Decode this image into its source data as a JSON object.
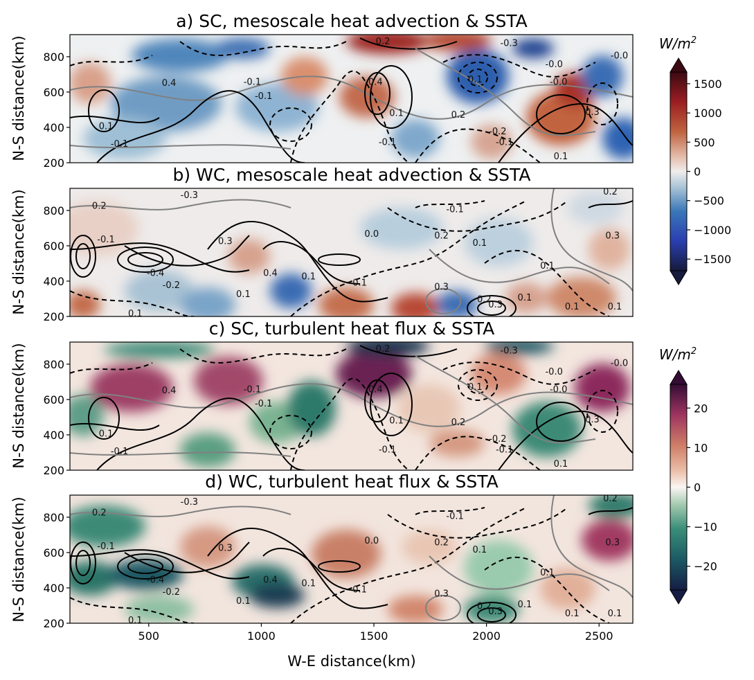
{
  "figure": {
    "xlabel": "W-E distance(km)",
    "ylabel": "N-S distance(km)",
    "colorbar_top_unit": "W/m",
    "colorbar_top_unit_sup": "2",
    "colorbar_bottom_unit": "W/m",
    "colorbar_bottom_unit_sup": "2"
  },
  "chart_data": [
    {
      "type": "heatmap",
      "title": "a) SC, mesoscale heat advection & SSTA",
      "xlim": [
        150,
        2650
      ],
      "ylim": [
        200,
        925
      ],
      "xticks": [],
      "yticks": [
        200,
        400,
        600,
        800
      ],
      "colormap": "balance",
      "clim": [
        -1700,
        1700
      ],
      "contour_labels": [
        {
          "x": 1600,
          "y": 465,
          "text": "0.1"
        },
        {
          "x": 960,
          "y": 640,
          "text": "-0.1"
        },
        {
          "x": 2080,
          "y": 300,
          "text": "-0.1"
        },
        {
          "x": 1010,
          "y": 560,
          "text": "-0.1"
        },
        {
          "x": 1540,
          "y": 870,
          "text": "0.2"
        },
        {
          "x": 2300,
          "y": 740,
          "text": "-0.0"
        },
        {
          "x": 1950,
          "y": 655,
          "text": "0.1"
        },
        {
          "x": 1875,
          "y": 455,
          "text": "0.2"
        },
        {
          "x": 2050,
          "y": 360,
          "text": "-0.2"
        },
        {
          "x": 2470,
          "y": 470,
          "text": "0.3"
        },
        {
          "x": 2330,
          "y": 220,
          "text": "0.1"
        },
        {
          "x": 2100,
          "y": 860,
          "text": "-0.3"
        },
        {
          "x": 310,
          "y": 390,
          "text": "0.1"
        },
        {
          "x": 370,
          "y": 290,
          "text": "-0.1"
        },
        {
          "x": 1500,
          "y": 640,
          "text": "-0.4"
        },
        {
          "x": 590,
          "y": 635,
          "text": "0.4"
        },
        {
          "x": 2590,
          "y": 790,
          "text": "-0.0"
        },
        {
          "x": 1560,
          "y": 300,
          "text": "-0.1"
        },
        {
          "x": 2320,
          "y": 640,
          "text": "-0.0"
        }
      ]
    },
    {
      "type": "heatmap",
      "title": "b) WC, mesoscale heat advection & SSTA",
      "xlim": [
        150,
        2650
      ],
      "ylim": [
        200,
        925
      ],
      "xticks": [],
      "yticks": [
        200,
        400,
        600,
        800
      ],
      "colormap": "balance",
      "clim": [
        -1700,
        1700
      ],
      "contour_labels": [
        {
          "x": 280,
          "y": 810,
          "text": "0.2"
        },
        {
          "x": 680,
          "y": 870,
          "text": "-0.3"
        },
        {
          "x": 310,
          "y": 620,
          "text": "-0.1"
        },
        {
          "x": 530,
          "y": 430,
          "text": "-0.4"
        },
        {
          "x": 600,
          "y": 360,
          "text": "-0.2"
        },
        {
          "x": 840,
          "y": 610,
          "text": "0.3"
        },
        {
          "x": 1040,
          "y": 430,
          "text": "0.4"
        },
        {
          "x": 1210,
          "y": 410,
          "text": "0.1"
        },
        {
          "x": 1430,
          "y": 375,
          "text": "-0.1"
        },
        {
          "x": 1490,
          "y": 650,
          "text": "0.0"
        },
        {
          "x": 1800,
          "y": 640,
          "text": "0.2"
        },
        {
          "x": 1800,
          "y": 350,
          "text": "0.3"
        },
        {
          "x": 1970,
          "y": 600,
          "text": "0.1"
        },
        {
          "x": 1990,
          "y": 280,
          "text": "0.2"
        },
        {
          "x": 2040,
          "y": 250,
          "text": "0.3"
        },
        {
          "x": 2170,
          "y": 290,
          "text": "0.1"
        },
        {
          "x": 2270,
          "y": 470,
          "text": "0.1"
        },
        {
          "x": 2380,
          "y": 240,
          "text": "0.1"
        },
        {
          "x": 2550,
          "y": 890,
          "text": "0.2"
        },
        {
          "x": 2560,
          "y": 640,
          "text": "0.3"
        },
        {
          "x": 2570,
          "y": 240,
          "text": "0.1"
        },
        {
          "x": 1860,
          "y": 790,
          "text": "-0.1"
        },
        {
          "x": 440,
          "y": 200,
          "text": "0.1"
        },
        {
          "x": 920,
          "y": 310,
          "text": "0.1"
        }
      ]
    },
    {
      "type": "heatmap",
      "title": "c) SC, turbulent heat flux & SSTA",
      "xlim": [
        150,
        2650
      ],
      "ylim": [
        200,
        925
      ],
      "xticks": [],
      "yticks": [
        200,
        400,
        600,
        800
      ],
      "colormap": "curl",
      "clim": [
        -26,
        26
      ],
      "contour_labels": [
        {
          "x": 1600,
          "y": 465,
          "text": "0.1"
        },
        {
          "x": 960,
          "y": 640,
          "text": "-0.1"
        },
        {
          "x": 2080,
          "y": 300,
          "text": "-0.1"
        },
        {
          "x": 1010,
          "y": 560,
          "text": "-0.1"
        },
        {
          "x": 1540,
          "y": 870,
          "text": "0.2"
        },
        {
          "x": 2300,
          "y": 740,
          "text": "-0.0"
        },
        {
          "x": 1950,
          "y": 655,
          "text": "0.1"
        },
        {
          "x": 1875,
          "y": 455,
          "text": "0.2"
        },
        {
          "x": 2050,
          "y": 360,
          "text": "-0.2"
        },
        {
          "x": 2470,
          "y": 470,
          "text": "0.3"
        },
        {
          "x": 2330,
          "y": 220,
          "text": "0.1"
        },
        {
          "x": 2100,
          "y": 860,
          "text": "-0.3"
        },
        {
          "x": 310,
          "y": 390,
          "text": "0.1"
        },
        {
          "x": 370,
          "y": 290,
          "text": "-0.1"
        },
        {
          "x": 1500,
          "y": 640,
          "text": "-0.4"
        },
        {
          "x": 590,
          "y": 635,
          "text": "0.4"
        },
        {
          "x": 2590,
          "y": 790,
          "text": "-0.0"
        },
        {
          "x": 1560,
          "y": 300,
          "text": "-0.1"
        },
        {
          "x": 2320,
          "y": 640,
          "text": "-0.0"
        }
      ]
    },
    {
      "type": "heatmap",
      "title": "d) WC, turbulent heat flux & SSTA",
      "xlim": [
        150,
        2650
      ],
      "ylim": [
        200,
        925
      ],
      "xticks": [
        500,
        1000,
        1500,
        2000,
        2500
      ],
      "yticks": [
        200,
        400,
        600,
        800
      ],
      "colormap": "curl",
      "clim": [
        -26,
        26
      ],
      "contour_labels": [
        {
          "x": 280,
          "y": 810,
          "text": "0.2"
        },
        {
          "x": 680,
          "y": 870,
          "text": "-0.3"
        },
        {
          "x": 310,
          "y": 620,
          "text": "-0.1"
        },
        {
          "x": 530,
          "y": 430,
          "text": "-0.4"
        },
        {
          "x": 600,
          "y": 360,
          "text": "-0.2"
        },
        {
          "x": 840,
          "y": 610,
          "text": "0.3"
        },
        {
          "x": 1040,
          "y": 430,
          "text": "0.4"
        },
        {
          "x": 1210,
          "y": 410,
          "text": "0.1"
        },
        {
          "x": 1430,
          "y": 375,
          "text": "-0.1"
        },
        {
          "x": 1490,
          "y": 650,
          "text": "0.0"
        },
        {
          "x": 1800,
          "y": 640,
          "text": "0.2"
        },
        {
          "x": 1800,
          "y": 350,
          "text": "0.3"
        },
        {
          "x": 1970,
          "y": 600,
          "text": "0.1"
        },
        {
          "x": 1990,
          "y": 280,
          "text": "0.2"
        },
        {
          "x": 2040,
          "y": 250,
          "text": "0.3"
        },
        {
          "x": 2170,
          "y": 290,
          "text": "0.1"
        },
        {
          "x": 2270,
          "y": 470,
          "text": "0.1"
        },
        {
          "x": 2380,
          "y": 240,
          "text": "0.1"
        },
        {
          "x": 2550,
          "y": 890,
          "text": "0.2"
        },
        {
          "x": 2560,
          "y": 640,
          "text": "0.3"
        },
        {
          "x": 2570,
          "y": 240,
          "text": "0.1"
        },
        {
          "x": 1860,
          "y": 790,
          "text": "-0.1"
        },
        {
          "x": 440,
          "y": 200,
          "text": "0.1"
        },
        {
          "x": 920,
          "y": 310,
          "text": "0.1"
        }
      ]
    },
    {
      "type": "colorbar",
      "colormap": "balance",
      "clim": [
        -1700,
        1700
      ],
      "ticks": [
        1500,
        1000,
        500,
        0,
        -500,
        -1000,
        -1500
      ],
      "tick_labels": [
        "1500",
        "1000",
        "500",
        "0",
        "−500",
        "−1000",
        "−1500"
      ],
      "extend": "both"
    },
    {
      "type": "colorbar",
      "colormap": "curl",
      "clim": [
        -26,
        26
      ],
      "ticks": [
        20,
        10,
        0,
        -10,
        -20
      ],
      "tick_labels": [
        "20",
        "10",
        "0",
        "−10",
        "−20"
      ],
      "extend": "both"
    }
  ]
}
